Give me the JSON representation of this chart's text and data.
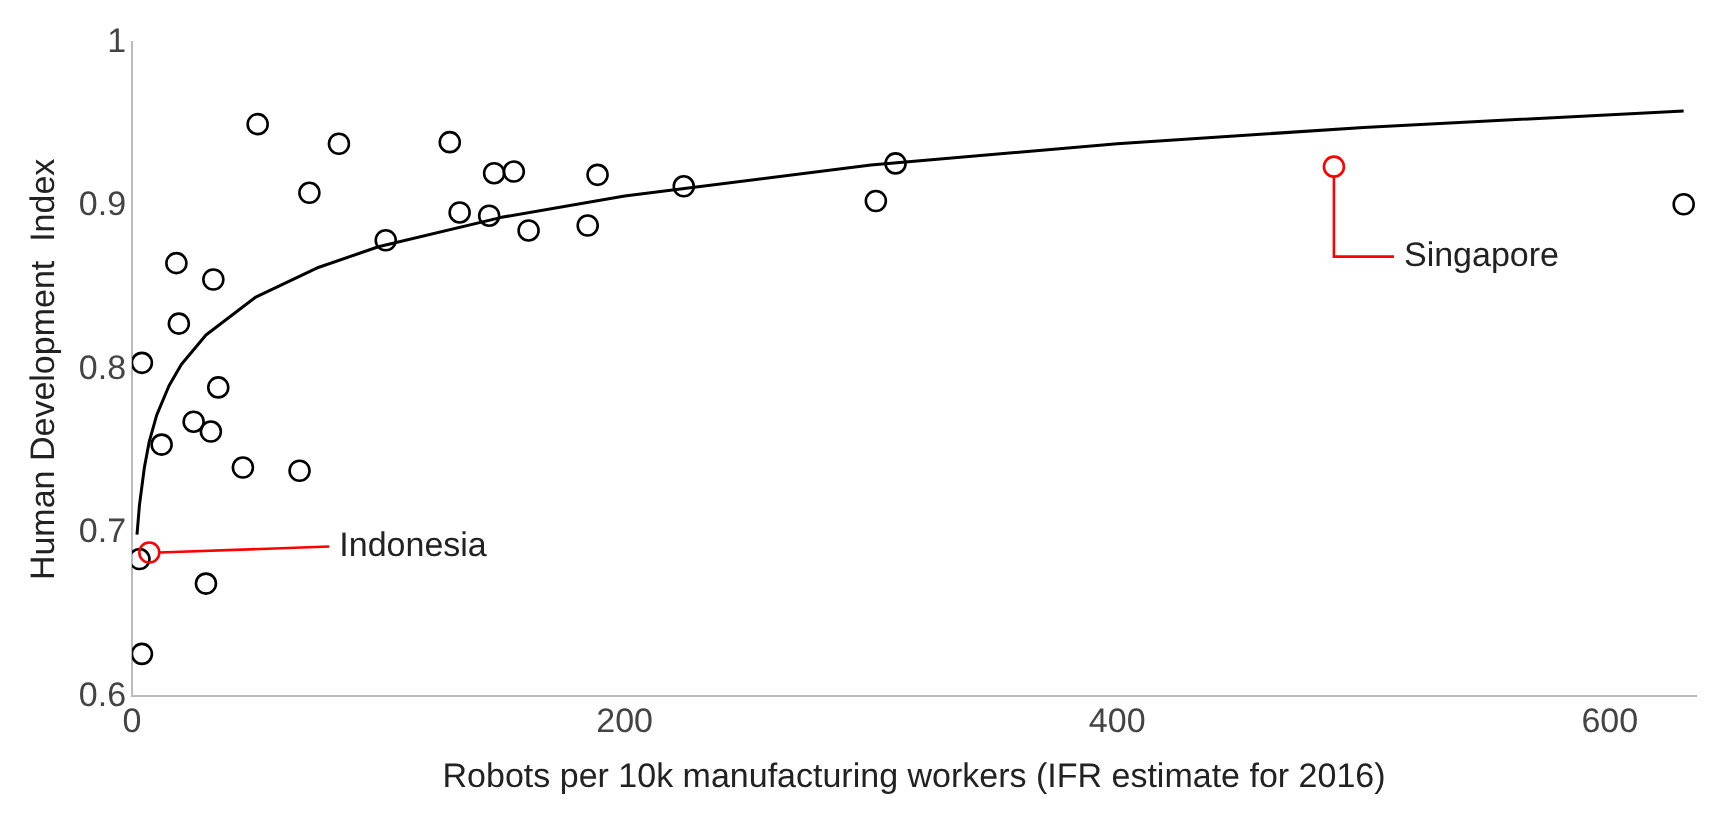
{
  "chart_data": {
    "type": "scatter",
    "xlabel": "Robots per 10k manufacturing workers (IFR estimate for 2016)",
    "ylabel": "Human Development  Index",
    "xlim": [
      0,
      635
    ],
    "ylim": [
      0.6,
      1
    ],
    "xticks": [
      0,
      200,
      400,
      600
    ],
    "yticks": [
      0.6,
      0.7,
      0.8,
      0.9,
      1
    ],
    "grid": false,
    "legend": false,
    "marker": "circle",
    "series": [
      {
        "x": [
          4,
          51,
          84,
          18,
          33,
          19,
          72,
          103,
          129,
          133,
          145,
          147,
          155,
          161,
          185,
          189,
          224,
          302,
          310,
          630,
          12,
          35,
          25,
          32,
          45,
          68,
          30,
          4,
          3,
          7,
          488
        ],
        "values": [
          0.804,
          0.95,
          0.938,
          0.865,
          0.855,
          0.828,
          0.908,
          0.879,
          0.939,
          0.896,
          0.894,
          0.92,
          0.921,
          0.885,
          0.888,
          0.919,
          0.912,
          0.903,
          0.926,
          0.901,
          0.754,
          0.789,
          0.768,
          0.762,
          0.74,
          0.738,
          0.669,
          0.626,
          0.684,
          0.688,
          0.924
        ],
        "colors": [
          "#000000",
          "#000000",
          "#000000",
          "#000000",
          "#000000",
          "#000000",
          "#000000",
          "#000000",
          "#000000",
          "#000000",
          "#000000",
          "#000000",
          "#000000",
          "#000000",
          "#000000",
          "#000000",
          "#000000",
          "#000000",
          "#000000",
          "#000000",
          "#000000",
          "#000000",
          "#000000",
          "#000000",
          "#000000",
          "#000000",
          "#000000",
          "#000000",
          "#000000",
          "#ff0000",
          "#ff0000"
        ]
      },
      {
        "type": "line",
        "marker": "none",
        "color": "#000000",
        "x": [
          2,
          3,
          5,
          7,
          10,
          15,
          20,
          30,
          50,
          75,
          100,
          150,
          200,
          300,
          400,
          500,
          630
        ],
        "values": [
          0.699,
          0.717,
          0.74,
          0.756,
          0.772,
          0.79,
          0.803,
          0.821,
          0.844,
          0.862,
          0.875,
          0.893,
          0.906,
          0.925,
          0.938,
          0.948,
          0.958
        ]
      }
    ],
    "annotations": [
      {
        "text": "Indonesia",
        "x": 7,
        "y": 0.688
      },
      {
        "text": "Singapore",
        "x": 488,
        "y": 0.924
      }
    ]
  }
}
